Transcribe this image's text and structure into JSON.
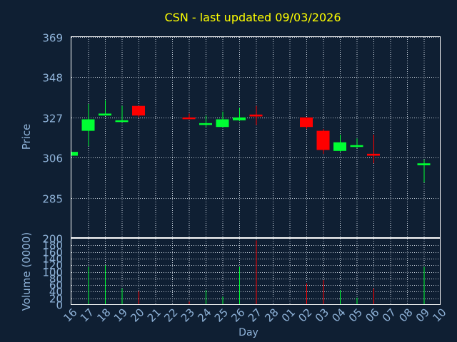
{
  "chart_data": {
    "type": "candlestick",
    "title": "CSN - last updated 09/03/2026",
    "xlabel": "Day",
    "ylabel": "Price",
    "volume_label": "Volume (0000)",
    "x_ticks": [
      "16",
      "17",
      "18",
      "19",
      "20",
      "21",
      "22",
      "23",
      "24",
      "25",
      "26",
      "27",
      "28",
      "01",
      "02",
      "03",
      "04",
      "05",
      "06",
      "07",
      "08",
      "09",
      "10"
    ],
    "price_ticks": [
      285,
      306,
      327,
      348,
      369
    ],
    "price_range": [
      264,
      369
    ],
    "volume_ticks": [
      0,
      20,
      40,
      60,
      80,
      100,
      120,
      140,
      160,
      180,
      200
    ],
    "volume_range": [
      0,
      200
    ],
    "grid": true,
    "colors": {
      "background": "#0f1f33",
      "title": "#ffff00",
      "axis_text": "#8fb3d9",
      "up": "#00ff33",
      "down": "#ff0000"
    },
    "candles": [
      {
        "day": "16",
        "open": 307,
        "high": 309,
        "low": 307,
        "close": 309
      },
      {
        "day": "17",
        "open": 320,
        "high": 334,
        "low": 312,
        "close": 326
      },
      {
        "day": "18",
        "open": 328,
        "high": 336,
        "low": 328,
        "close": 329
      },
      {
        "day": "19",
        "open": 325,
        "high": 333,
        "low": 325,
        "close": 325.5
      },
      {
        "day": "20",
        "open": 333,
        "high": 333,
        "low": 327,
        "close": 328
      },
      {
        "day": "23",
        "open": 327,
        "high": 329,
        "low": 326,
        "close": 326.5
      },
      {
        "day": "24",
        "open": 323.5,
        "high": 328,
        "low": 322,
        "close": 324
      },
      {
        "day": "25",
        "open": 322,
        "high": 330,
        "low": 322,
        "close": 326
      },
      {
        "day": "26",
        "open": 325.5,
        "high": 332,
        "low": 325,
        "close": 327
      },
      {
        "day": "27",
        "open": 328.5,
        "high": 333,
        "low": 323,
        "close": 327.5
      },
      {
        "day": "02",
        "open": 327,
        "high": 327,
        "low": 321,
        "close": 322
      },
      {
        "day": "03",
        "open": 320,
        "high": 321,
        "low": 308,
        "close": 310
      },
      {
        "day": "04",
        "open": 309.5,
        "high": 318,
        "low": 309,
        "close": 314
      },
      {
        "day": "05",
        "open": 312,
        "high": 316,
        "low": 311,
        "close": 312.5
      },
      {
        "day": "06",
        "open": 308,
        "high": 318,
        "low": 303,
        "close": 307
      },
      {
        "day": "09",
        "open": 302,
        "high": 305,
        "low": 293,
        "close": 303
      }
    ],
    "volumes": [
      {
        "day": "17",
        "value": 115,
        "dir": "up"
      },
      {
        "day": "18",
        "value": 120,
        "dir": "up"
      },
      {
        "day": "19",
        "value": 50,
        "dir": "up"
      },
      {
        "day": "20",
        "value": 42,
        "dir": "down"
      },
      {
        "day": "23",
        "value": 10,
        "dir": "down"
      },
      {
        "day": "24",
        "value": 45,
        "dir": "up"
      },
      {
        "day": "25",
        "value": 25,
        "dir": "up"
      },
      {
        "day": "26",
        "value": 115,
        "dir": "up"
      },
      {
        "day": "27",
        "value": 195,
        "dir": "down"
      },
      {
        "day": "02",
        "value": 65,
        "dir": "down"
      },
      {
        "day": "03",
        "value": 75,
        "dir": "down"
      },
      {
        "day": "04",
        "value": 45,
        "dir": "up"
      },
      {
        "day": "05",
        "value": 22,
        "dir": "up"
      },
      {
        "day": "06",
        "value": 50,
        "dir": "down"
      },
      {
        "day": "09",
        "value": 115,
        "dir": "up"
      }
    ]
  }
}
